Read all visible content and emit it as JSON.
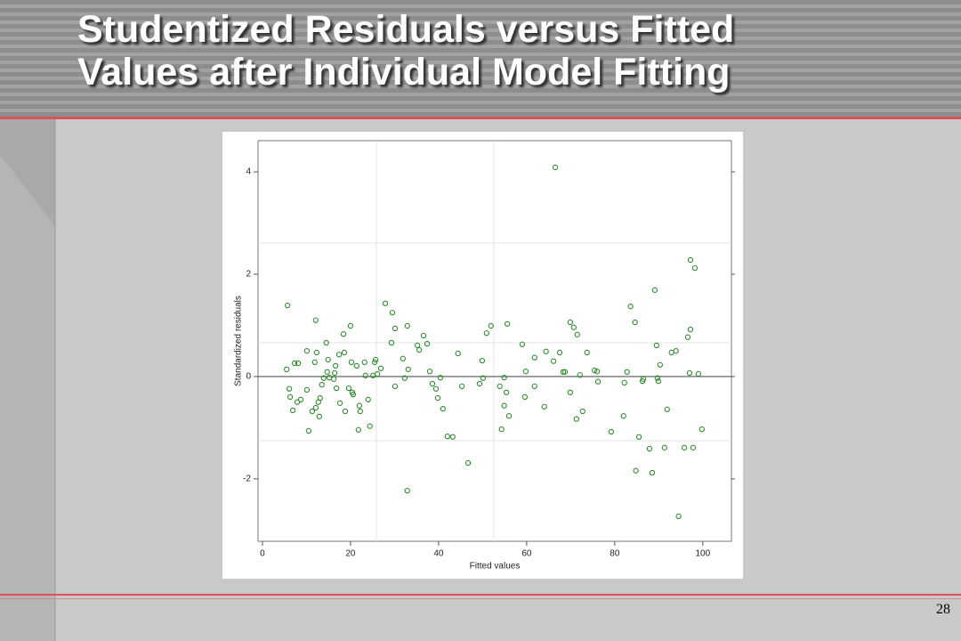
{
  "title_lines": [
    "Studentized Residuals versus Fitted",
    "Values after Individual Model Fitting"
  ],
  "page_number": "28",
  "chart_data": {
    "type": "scatter",
    "x_label": "Fitted values",
    "y_label": "Standardized residuals",
    "xlim": [
      -1,
      106.5
    ],
    "ylim": [
      -3.22,
      4.61
    ],
    "xticks": [
      0,
      20,
      40,
      60,
      80,
      100
    ],
    "yticks": [
      -2,
      0,
      2,
      4
    ],
    "series": [
      {
        "color": "#2e8b2e",
        "x": [
          5.7,
          5.5,
          6.1,
          6.3,
          6.9,
          7.3,
          8.1,
          7.9,
          8.7,
          10.1,
          10.1,
          10.5,
          11.3,
          11.9,
          12.1,
          12.3,
          12.1,
          12.7,
          12.9,
          13.1,
          13.5,
          13.9,
          14.5,
          14.7,
          14.9,
          15.2,
          16.2,
          16.4,
          16.6,
          16.8,
          17.4,
          17.6,
          18.4,
          18.6,
          18.8,
          19.6,
          20.0,
          20.2,
          20.4,
          20.6,
          21.4,
          21.8,
          22.0,
          22.2,
          23.2,
          23.4,
          24.0,
          24.4,
          25.1,
          25.5,
          25.7,
          26.1,
          26.9,
          27.9,
          29.3,
          29.5,
          30.1,
          30.1,
          31.9,
          32.3,
          32.9,
          33.1,
          32.9,
          35.2,
          35.6,
          36.6,
          37.4,
          38.0,
          38.6,
          39.4,
          39.8,
          40.4,
          41.0,
          42.0,
          43.2,
          44.4,
          45.3,
          46.7,
          49.3,
          49.9,
          50.1,
          50.9,
          51.9,
          53.9,
          54.3,
          54.9,
          54.9,
          55.4,
          55.6,
          56.0,
          59.0,
          59.6,
          59.8,
          61.8,
          61.8,
          64.0,
          64.4,
          66.1,
          66.5,
          67.5,
          68.3,
          68.7,
          69.9,
          69.9,
          70.7,
          71.3,
          71.5,
          72.1,
          72.7,
          73.7,
          75.4,
          76.0,
          76.2,
          79.2,
          82.0,
          82.2,
          82.8,
          83.6,
          84.6,
          84.8,
          85.5,
          86.3,
          86.5,
          87.9,
          88.5,
          89.1,
          89.5,
          89.7,
          89.9,
          90.3,
          91.3,
          91.9,
          92.9,
          93.9,
          94.5,
          95.8,
          96.6,
          97.0,
          97.2,
          97.2,
          97.8,
          98.2,
          99.0,
          99.8
        ],
        "values": [
          1.39,
          0.14,
          -0.24,
          -0.4,
          -0.66,
          0.26,
          0.26,
          -0.5,
          -0.45,
          0.5,
          -0.26,
          -1.06,
          -0.68,
          0.28,
          1.1,
          0.47,
          -0.61,
          -0.5,
          -0.78,
          -0.42,
          -0.16,
          -0.03,
          0.66,
          0.09,
          0.33,
          -0.02,
          -0.05,
          0.07,
          0.21,
          -0.23,
          0.43,
          -0.52,
          0.83,
          0.47,
          -0.68,
          -0.23,
          0.99,
          0.28,
          -0.31,
          -0.35,
          0.21,
          -1.04,
          -0.57,
          -0.68,
          0.28,
          0.02,
          -0.45,
          -0.97,
          0.02,
          0.28,
          0.33,
          0.05,
          0.16,
          1.43,
          0.66,
          1.25,
          0.94,
          -0.19,
          0.35,
          -0.03,
          0.99,
          0.14,
          -2.23,
          0.61,
          0.52,
          0.8,
          0.64,
          0.1,
          -0.14,
          -0.24,
          -0.42,
          -0.02,
          -0.63,
          -1.17,
          -1.18,
          0.45,
          -0.19,
          -1.69,
          -0.14,
          0.31,
          -0.03,
          0.85,
          0.99,
          -0.19,
          -1.03,
          -0.57,
          -0.02,
          -0.31,
          1.03,
          -0.77,
          0.63,
          -0.4,
          0.1,
          0.37,
          -0.19,
          -0.59,
          0.49,
          0.3,
          4.09,
          0.47,
          0.09,
          0.09,
          1.06,
          -0.31,
          0.96,
          -0.83,
          0.82,
          0.03,
          -0.68,
          0.47,
          0.12,
          0.1,
          -0.1,
          -1.08,
          -0.77,
          -0.12,
          0.09,
          1.37,
          1.06,
          -1.84,
          -1.18,
          -0.09,
          -0.05,
          -1.41,
          -1.88,
          1.69,
          0.61,
          -0.03,
          -0.09,
          0.23,
          -1.39,
          -0.64,
          0.47,
          0.5,
          -2.73,
          -1.39,
          0.77,
          0.07,
          2.28,
          0.92,
          -1.39,
          2.12,
          0.05,
          -1.03
        ]
      }
    ]
  }
}
